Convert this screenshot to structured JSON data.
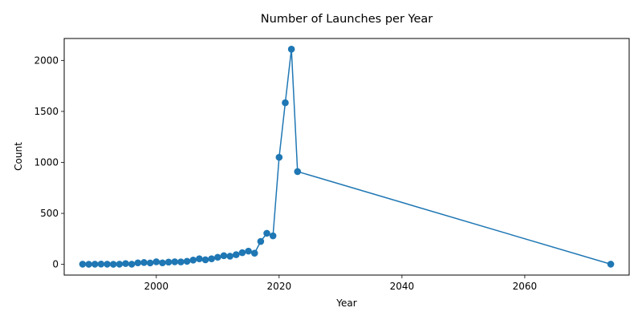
{
  "chart_data": {
    "type": "line",
    "title": "Number of Launches per Year",
    "xlabel": "Year",
    "ylabel": "Count",
    "xlim": [
      1985,
      2077
    ],
    "ylim": [
      -105,
      2215
    ],
    "xticks": [
      2000,
      2020,
      2040,
      2060
    ],
    "yticks": [
      0,
      500,
      1000,
      1500,
      2000
    ],
    "grid": false,
    "series": [
      {
        "color": "#1f77b4",
        "marker": "circle",
        "x": [
          1988,
          1989,
          1990,
          1991,
          1992,
          1993,
          1994,
          1995,
          1996,
          1997,
          1998,
          1999,
          2000,
          2001,
          2002,
          2003,
          2004,
          2005,
          2006,
          2007,
          2008,
          2009,
          2010,
          2011,
          2012,
          2013,
          2014,
          2015,
          2016,
          2017,
          2018,
          2019,
          2020,
          2021,
          2022,
          2023,
          2074
        ],
        "y": [
          2,
          1,
          2,
          3,
          2,
          1,
          2,
          8,
          2,
          15,
          18,
          14,
          25,
          15,
          22,
          25,
          24,
          30,
          42,
          55,
          45,
          55,
          70,
          85,
          80,
          95,
          115,
          130,
          110,
          225,
          305,
          280,
          1050,
          1585,
          2110,
          910,
          2
        ]
      }
    ]
  }
}
